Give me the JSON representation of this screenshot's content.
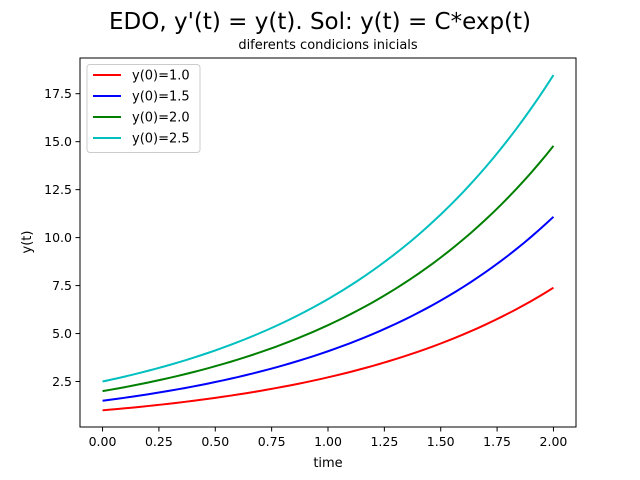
{
  "chart_data": {
    "type": "line",
    "title": "EDO, y'(t) = y(t). Sol: y(t) = C*exp(t)",
    "subtitle": "diferents condicions inicials",
    "xlabel": "time",
    "ylabel": "y(t)",
    "xlim": [
      -0.1,
      2.1
    ],
    "ylim": [
      0.13,
      19.36
    ],
    "xticks": [
      "0.00",
      "0.25",
      "0.50",
      "0.75",
      "1.00",
      "1.25",
      "1.50",
      "1.75",
      "2.00"
    ],
    "yticks": [
      "2.5",
      "5.0",
      "7.5",
      "10.0",
      "12.5",
      "15.0",
      "17.5"
    ],
    "legend_position": "top-left",
    "grid": false,
    "x": [
      0.0,
      0.25,
      0.5,
      0.75,
      1.0,
      1.25,
      1.5,
      1.75,
      2.0
    ],
    "series": [
      {
        "name": "y(0)=1.0",
        "color": "#ff0000",
        "values": [
          1.0,
          1.28,
          1.65,
          2.12,
          2.72,
          3.49,
          4.48,
          5.75,
          7.39
        ]
      },
      {
        "name": "y(0)=1.5",
        "color": "#0000ff",
        "values": [
          1.5,
          1.93,
          2.47,
          3.18,
          4.08,
          5.24,
          6.72,
          8.63,
          11.08
        ]
      },
      {
        "name": "y(0)=2.0",
        "color": "#008000",
        "values": [
          2.0,
          2.57,
          3.3,
          4.23,
          5.44,
          6.98,
          8.96,
          11.51,
          14.78
        ]
      },
      {
        "name": "y(0)=2.5",
        "color": "#00bfbf",
        "values": [
          2.5,
          3.21,
          4.12,
          5.29,
          6.8,
          8.73,
          11.2,
          14.39,
          18.47
        ]
      }
    ]
  }
}
